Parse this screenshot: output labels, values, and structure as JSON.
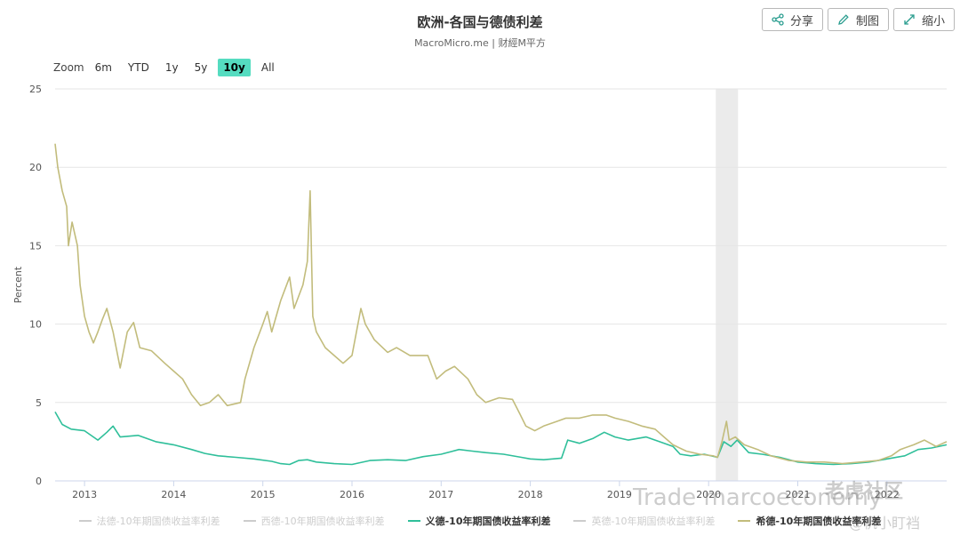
{
  "title": "欧洲-各国与德债利差",
  "subtitle": "MacroMicro.me | 财經M平方",
  "toolbar": {
    "share": "分享",
    "draw": "制图",
    "shrink": "缩小"
  },
  "zoom": {
    "label": "Zoom",
    "options": [
      "6m",
      "YTD",
      "1y",
      "5y",
      "10y",
      "All"
    ],
    "active": "10y"
  },
  "watermark": {
    "left": "Trade marcoeconomy",
    "right1": "老虎社区",
    "right2": "@帆小盯裆"
  },
  "colors": {
    "italy": "#2fbf9a",
    "greece": "#c2bc7c",
    "recession": "#ebebeb",
    "inactive": "#cccccc",
    "active_zoom": "#55dcc0"
  },
  "chart_data": {
    "type": "line",
    "ylabel": "Percent",
    "ylim": [
      0,
      25
    ],
    "yticks": [
      0,
      5,
      10,
      15,
      20,
      25
    ],
    "xlim": [
      2012.67,
      2022.67
    ],
    "xticks": [
      "2013",
      "2014",
      "2015",
      "2016",
      "2017",
      "2018",
      "2019",
      "2020",
      "2021",
      "2022"
    ],
    "xtick_values": [
      2013,
      2014,
      2015,
      2016,
      2017,
      2018,
      2019,
      2020,
      2021,
      2022
    ],
    "grid": true,
    "recession_band": [
      2020.08,
      2020.33
    ],
    "legend_position": "bottom",
    "legend": [
      {
        "name": "法德-10年期国债收益率利差",
        "visible": false
      },
      {
        "name": "西德-10年期国债收益率利差",
        "visible": false
      },
      {
        "name": "义德-10年期国债收益率利差",
        "visible": true,
        "color": "#2fbf9a"
      },
      {
        "name": "英德-10年期国债收益率利差",
        "visible": false
      },
      {
        "name": "希德-10年期国债收益率利差",
        "visible": true,
        "color": "#c2bc7c"
      }
    ],
    "series": [
      {
        "name": "义德-10年期国债收益率利差",
        "points": [
          [
            2012.67,
            4.4
          ],
          [
            2012.75,
            3.6
          ],
          [
            2012.85,
            3.3
          ],
          [
            2013.0,
            3.2
          ],
          [
            2013.15,
            2.6
          ],
          [
            2013.25,
            3.1
          ],
          [
            2013.32,
            3.5
          ],
          [
            2013.4,
            2.8
          ],
          [
            2013.6,
            2.9
          ],
          [
            2013.8,
            2.5
          ],
          [
            2014.0,
            2.3
          ],
          [
            2014.2,
            2.0
          ],
          [
            2014.35,
            1.75
          ],
          [
            2014.5,
            1.6
          ],
          [
            2014.7,
            1.5
          ],
          [
            2014.9,
            1.4
          ],
          [
            2015.1,
            1.25
          ],
          [
            2015.2,
            1.1
          ],
          [
            2015.3,
            1.05
          ],
          [
            2015.4,
            1.3
          ],
          [
            2015.5,
            1.35
          ],
          [
            2015.6,
            1.2
          ],
          [
            2015.8,
            1.1
          ],
          [
            2016.0,
            1.05
          ],
          [
            2016.2,
            1.3
          ],
          [
            2016.4,
            1.35
          ],
          [
            2016.6,
            1.3
          ],
          [
            2016.8,
            1.55
          ],
          [
            2017.0,
            1.7
          ],
          [
            2017.2,
            2.0
          ],
          [
            2017.35,
            1.9
          ],
          [
            2017.5,
            1.8
          ],
          [
            2017.7,
            1.7
          ],
          [
            2017.9,
            1.5
          ],
          [
            2018.0,
            1.4
          ],
          [
            2018.15,
            1.35
          ],
          [
            2018.35,
            1.45
          ],
          [
            2018.42,
            2.6
          ],
          [
            2018.55,
            2.4
          ],
          [
            2018.7,
            2.7
          ],
          [
            2018.83,
            3.1
          ],
          [
            2018.95,
            2.8
          ],
          [
            2019.1,
            2.6
          ],
          [
            2019.3,
            2.8
          ],
          [
            2019.45,
            2.5
          ],
          [
            2019.6,
            2.2
          ],
          [
            2019.68,
            1.7
          ],
          [
            2019.8,
            1.6
          ],
          [
            2019.95,
            1.7
          ],
          [
            2020.1,
            1.5
          ],
          [
            2020.17,
            2.5
          ],
          [
            2020.25,
            2.2
          ],
          [
            2020.32,
            2.6
          ],
          [
            2020.45,
            1.8
          ],
          [
            2020.6,
            1.7
          ],
          [
            2020.8,
            1.5
          ],
          [
            2021.0,
            1.2
          ],
          [
            2021.2,
            1.1
          ],
          [
            2021.4,
            1.05
          ],
          [
            2021.6,
            1.1
          ],
          [
            2021.8,
            1.2
          ],
          [
            2022.0,
            1.4
          ],
          [
            2022.2,
            1.6
          ],
          [
            2022.35,
            2.0
          ],
          [
            2022.5,
            2.1
          ],
          [
            2022.67,
            2.3
          ]
        ]
      },
      {
        "name": "希德-10年期国债收益率利差",
        "points": [
          [
            2012.67,
            21.5
          ],
          [
            2012.7,
            20.0
          ],
          [
            2012.75,
            18.5
          ],
          [
            2012.8,
            17.5
          ],
          [
            2012.82,
            15.0
          ],
          [
            2012.86,
            16.5
          ],
          [
            2012.92,
            15.0
          ],
          [
            2012.95,
            12.5
          ],
          [
            2013.0,
            10.5
          ],
          [
            2013.05,
            9.5
          ],
          [
            2013.1,
            8.8
          ],
          [
            2013.15,
            9.5
          ],
          [
            2013.2,
            10.3
          ],
          [
            2013.25,
            11.0
          ],
          [
            2013.32,
            9.5
          ],
          [
            2013.4,
            7.2
          ],
          [
            2013.48,
            9.5
          ],
          [
            2013.55,
            10.1
          ],
          [
            2013.62,
            8.5
          ],
          [
            2013.75,
            8.3
          ],
          [
            2013.9,
            7.5
          ],
          [
            2014.0,
            7.0
          ],
          [
            2014.1,
            6.5
          ],
          [
            2014.2,
            5.5
          ],
          [
            2014.3,
            4.8
          ],
          [
            2014.4,
            5.0
          ],
          [
            2014.5,
            5.5
          ],
          [
            2014.6,
            4.8
          ],
          [
            2014.75,
            5.0
          ],
          [
            2014.8,
            6.5
          ],
          [
            2014.9,
            8.5
          ],
          [
            2015.0,
            10.0
          ],
          [
            2015.05,
            10.8
          ],
          [
            2015.1,
            9.5
          ],
          [
            2015.2,
            11.5
          ],
          [
            2015.3,
            13.0
          ],
          [
            2015.35,
            11.0
          ],
          [
            2015.45,
            12.5
          ],
          [
            2015.5,
            14.0
          ],
          [
            2015.53,
            18.5
          ],
          [
            2015.56,
            10.5
          ],
          [
            2015.6,
            9.5
          ],
          [
            2015.7,
            8.5
          ],
          [
            2015.8,
            8.0
          ],
          [
            2015.9,
            7.5
          ],
          [
            2016.0,
            8.0
          ],
          [
            2016.05,
            9.5
          ],
          [
            2016.1,
            11.0
          ],
          [
            2016.15,
            10.0
          ],
          [
            2016.25,
            9.0
          ],
          [
            2016.4,
            8.2
          ],
          [
            2016.5,
            8.5
          ],
          [
            2016.65,
            8.0
          ],
          [
            2016.85,
            8.0
          ],
          [
            2016.95,
            6.5
          ],
          [
            2017.05,
            7.0
          ],
          [
            2017.15,
            7.3
          ],
          [
            2017.3,
            6.5
          ],
          [
            2017.4,
            5.5
          ],
          [
            2017.5,
            5.0
          ],
          [
            2017.65,
            5.3
          ],
          [
            2017.8,
            5.2
          ],
          [
            2017.88,
            4.3
          ],
          [
            2017.95,
            3.5
          ],
          [
            2018.05,
            3.2
          ],
          [
            2018.15,
            3.5
          ],
          [
            2018.3,
            3.8
          ],
          [
            2018.4,
            4.0
          ],
          [
            2018.55,
            4.0
          ],
          [
            2018.7,
            4.2
          ],
          [
            2018.85,
            4.2
          ],
          [
            2018.95,
            4.0
          ],
          [
            2019.1,
            3.8
          ],
          [
            2019.25,
            3.5
          ],
          [
            2019.4,
            3.3
          ],
          [
            2019.5,
            2.8
          ],
          [
            2019.6,
            2.3
          ],
          [
            2019.75,
            1.9
          ],
          [
            2019.9,
            1.7
          ],
          [
            2020.05,
            1.6
          ],
          [
            2020.1,
            1.5
          ],
          [
            2020.15,
            2.5
          ],
          [
            2020.2,
            3.8
          ],
          [
            2020.23,
            2.6
          ],
          [
            2020.3,
            2.8
          ],
          [
            2020.4,
            2.3
          ],
          [
            2020.55,
            2.0
          ],
          [
            2020.7,
            1.6
          ],
          [
            2020.9,
            1.3
          ],
          [
            2021.1,
            1.2
          ],
          [
            2021.3,
            1.2
          ],
          [
            2021.5,
            1.1
          ],
          [
            2021.7,
            1.2
          ],
          [
            2021.9,
            1.3
          ],
          [
            2022.05,
            1.6
          ],
          [
            2022.15,
            2.0
          ],
          [
            2022.3,
            2.3
          ],
          [
            2022.42,
            2.6
          ],
          [
            2022.55,
            2.2
          ],
          [
            2022.67,
            2.5
          ]
        ]
      }
    ]
  }
}
